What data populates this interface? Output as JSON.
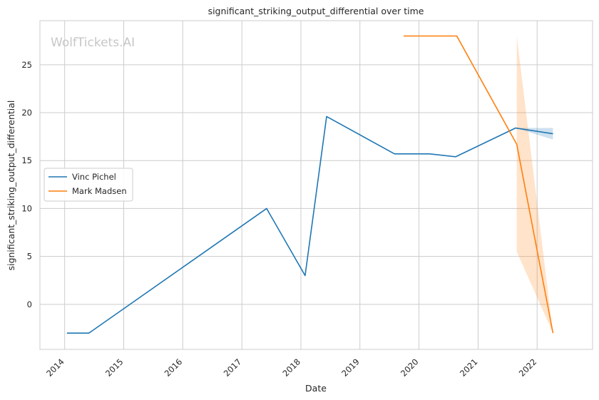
{
  "chart_data": {
    "type": "line",
    "title": "significant_striking_output_differential over time",
    "xlabel": "Date",
    "ylabel": "significant_striking_output_differential",
    "watermark": "WolfTickets.AI",
    "xlim": [
      "2013-08-01",
      "2022-12-10"
    ],
    "ylim": [
      -4.7,
      29.6
    ],
    "x_ticks": [
      "2014",
      "2015",
      "2016",
      "2017",
      "2018",
      "2019",
      "2020",
      "2021",
      "2022"
    ],
    "y_ticks": [
      0,
      5,
      10,
      15,
      20,
      25
    ],
    "grid": true,
    "legend_position": "center-left",
    "series": [
      {
        "name": "Vinc Pichel",
        "color": "#1f77b4",
        "points": [
          {
            "x": "2014-01-15",
            "y": -3.0
          },
          {
            "x": "2014-05-31",
            "y": -3.0
          },
          {
            "x": "2017-06-03",
            "y": 10.0
          },
          {
            "x": "2018-01-27",
            "y": 3.0
          },
          {
            "x": "2018-06-09",
            "y": 19.6
          },
          {
            "x": "2019-08-03",
            "y": 15.7
          },
          {
            "x": "2020-03-07",
            "y": 15.7
          },
          {
            "x": "2020-08-15",
            "y": 15.4
          },
          {
            "x": "2021-08-21",
            "y": 18.4
          },
          {
            "x": "2022-04-09",
            "y": 17.8
          }
        ],
        "band": [
          {
            "x": "2021-08-21",
            "low": 18.4,
            "high": 18.4
          },
          {
            "x": "2022-04-09",
            "low": 17.2,
            "high": 18.4
          }
        ]
      },
      {
        "name": "Mark Madsen",
        "color": "#ff7f0e",
        "points": [
          {
            "x": "2019-09-28",
            "y": 28.0
          },
          {
            "x": "2020-08-22",
            "y": 28.0
          },
          {
            "x": "2021-08-28",
            "y": 16.7
          },
          {
            "x": "2022-04-09",
            "y": -3.0
          }
        ],
        "band": [
          {
            "x": "2021-08-28",
            "low": 5.5,
            "high": 28.0
          },
          {
            "x": "2022-04-09",
            "low": -3.0,
            "high": -3.0
          }
        ]
      }
    ]
  }
}
